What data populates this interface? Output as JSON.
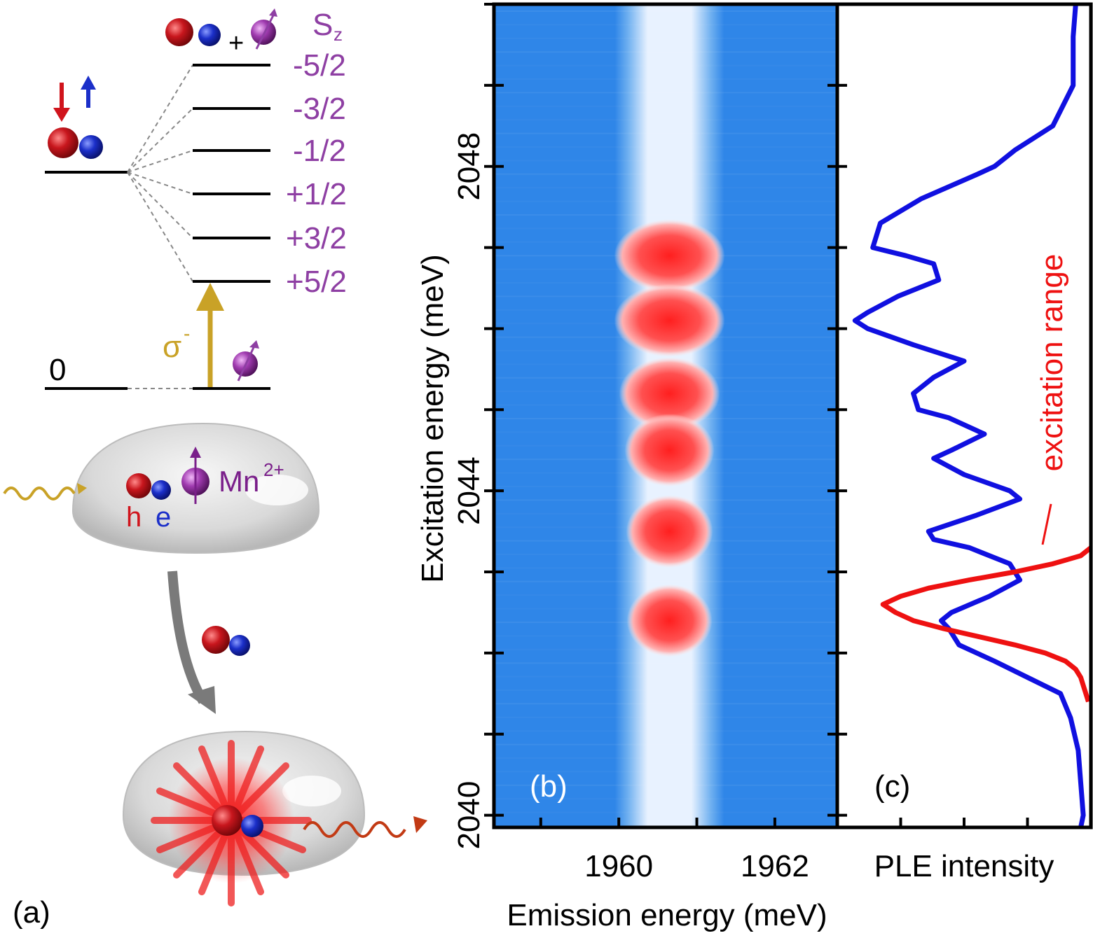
{
  "panel_a": {
    "label": "(a)",
    "sz_label": "S",
    "sz_sub": "z",
    "plus": "+",
    "levels": [
      "-5/2",
      "-3/2",
      "-1/2",
      "+1/2",
      "+3/2",
      "+5/2"
    ],
    "ground_label": "0",
    "sigma": "σ",
    "sigma_sup": "-",
    "hole_label": "h",
    "electron_label": "e",
    "mn_label": "Mn",
    "mn_sup": "2+",
    "colors": {
      "hole": "#c8161d",
      "electron": "#1b2fc9",
      "mn": "#9b2fa8",
      "levels_text": "#8e3fa3",
      "sigma": "#c9a227",
      "emission": "#c23a14"
    }
  },
  "chart_data": [
    {
      "panel": "(b)",
      "type": "heatmap",
      "xlabel": "Emission energy (meV)",
      "ylabel": "Excitation energy (meV)",
      "x_ticks": [
        "1960",
        "1962"
      ],
      "x_tick_values": [
        1960,
        1962
      ],
      "y_ticks": [
        "2040",
        "2044",
        "2048"
      ],
      "y_tick_values": [
        2040,
        2044,
        2048
      ],
      "xlim": [
        1958.4,
        1962.8
      ],
      "ylim": [
        2039.85,
        2050.0
      ],
      "line_center": 1960.65,
      "line_width": 0.9,
      "peaks_excitation": [
        2046.9,
        2046.1,
        2045.2,
        2044.5,
        2043.5,
        2042.4
      ],
      "colors": {
        "background": "#2f86e8",
        "peak": "#ff2a2a",
        "line": "#e8f2ff"
      }
    },
    {
      "panel": "(c)",
      "type": "line",
      "xlabel": "PLE intensity",
      "ylim": [
        2039.85,
        2050.0
      ],
      "series": [
        {
          "name": "PLE",
          "color": "#1010e0",
          "y": [
            2050.0,
            2049.6,
            2049.0,
            2048.5,
            2048.2,
            2048.0,
            2047.9,
            2047.6,
            2047.3,
            2047.0,
            2046.9,
            2046.8,
            2046.6,
            2046.4,
            2046.2,
            2046.1,
            2046.0,
            2045.8,
            2045.6,
            2045.4,
            2045.2,
            2045.0,
            2044.9,
            2044.7,
            2044.5,
            2044.4,
            2044.2,
            2044.0,
            2043.9,
            2043.7,
            2043.5,
            2043.4,
            2043.3,
            2043.1,
            2042.9,
            2042.7,
            2042.5,
            2042.4,
            2042.3,
            2042.1,
            2041.9,
            2041.7,
            2041.5,
            2041.2,
            2040.8,
            2040.4,
            2040.0,
            2039.85
          ],
          "x": [
            0.94,
            0.93,
            0.93,
            0.85,
            0.7,
            0.62,
            0.55,
            0.33,
            0.17,
            0.14,
            0.27,
            0.38,
            0.4,
            0.24,
            0.12,
            0.07,
            0.12,
            0.3,
            0.5,
            0.38,
            0.3,
            0.32,
            0.44,
            0.58,
            0.45,
            0.38,
            0.5,
            0.68,
            0.72,
            0.55,
            0.36,
            0.38,
            0.52,
            0.68,
            0.72,
            0.6,
            0.45,
            0.41,
            0.44,
            0.48,
            0.62,
            0.75,
            0.88,
            0.92,
            0.95,
            0.96,
            0.97,
            0.96
          ]
        },
        {
          "name": "excitation range",
          "color": "#ee1111",
          "y": [
            2043.3,
            2043.2,
            2043.1,
            2043.0,
            2042.9,
            2042.8,
            2042.7,
            2042.6,
            2042.5,
            2042.4,
            2042.3,
            2042.2,
            2042.1,
            2042.0,
            2041.9,
            2041.8,
            2041.7,
            2041.6,
            2041.5,
            2041.4
          ],
          "x": [
            1.0,
            0.96,
            0.85,
            0.7,
            0.52,
            0.36,
            0.25,
            0.18,
            0.23,
            0.3,
            0.42,
            0.56,
            0.7,
            0.82,
            0.9,
            0.94,
            0.96,
            0.97,
            0.98,
            0.99
          ]
        }
      ],
      "annotation": "excitation range"
    }
  ]
}
